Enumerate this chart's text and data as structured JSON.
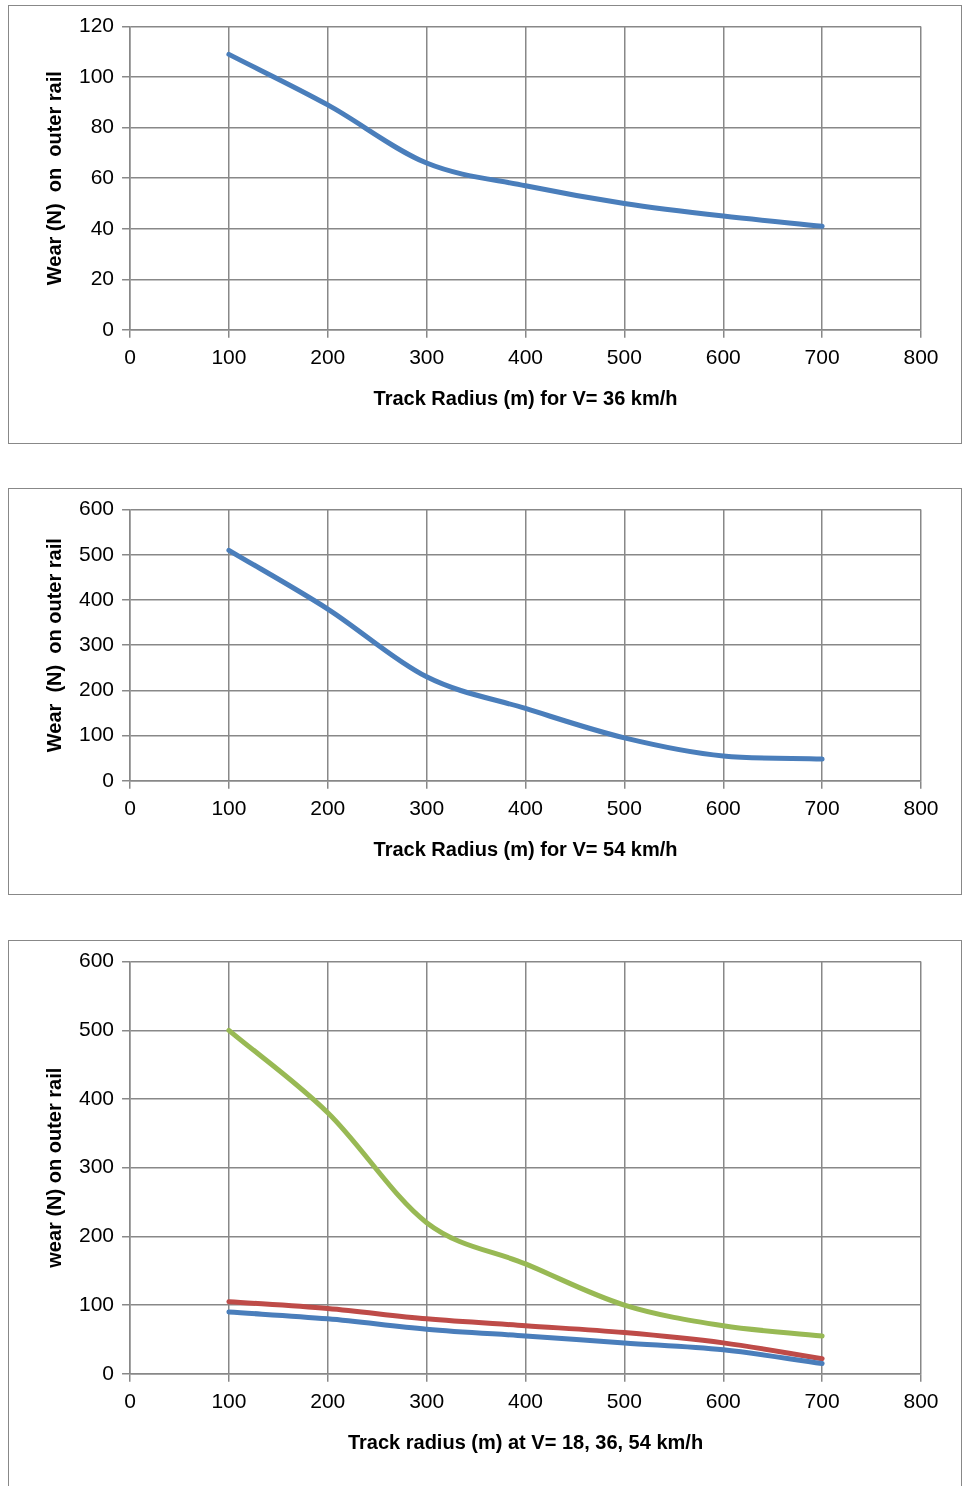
{
  "chart_data": [
    {
      "type": "line",
      "x": [
        100,
        200,
        300,
        400,
        500,
        600,
        700
      ],
      "xlabel": "Track Radius (m) for V= 36 km/h",
      "ylabel": "Wear (N)  on  outer rail",
      "xlim": [
        0,
        800
      ],
      "xticks": [
        0,
        100,
        200,
        300,
        400,
        500,
        600,
        700,
        800
      ],
      "ylim": [
        0,
        120
      ],
      "yticks": [
        0,
        20,
        40,
        60,
        80,
        100,
        120
      ],
      "grid": true,
      "legend": false,
      "marker": "none",
      "series": [
        {
          "color": "#4a7ebb",
          "values": [
            109,
            89,
            66,
            57,
            50,
            45,
            41
          ]
        }
      ]
    },
    {
      "type": "line",
      "x": [
        100,
        200,
        300,
        400,
        500,
        600,
        700
      ],
      "xlabel": "Track Radius (m) for V= 54 km/h",
      "ylabel": "Wear  (N)  on outer rail",
      "xlim": [
        0,
        800
      ],
      "xticks": [
        0,
        100,
        200,
        300,
        400,
        500,
        600,
        700,
        800
      ],
      "ylim": [
        0,
        600
      ],
      "yticks": [
        0,
        100,
        200,
        300,
        400,
        500,
        600
      ],
      "grid": true,
      "legend": false,
      "marker": "none",
      "series": [
        {
          "color": "#4a7ebb",
          "values": [
            510,
            380,
            230,
            160,
            95,
            55,
            48
          ]
        }
      ]
    },
    {
      "type": "line",
      "x": [
        100,
        200,
        300,
        400,
        500,
        600,
        700
      ],
      "xlabel": "Track radius (m) at V= 18, 36, 54 km/h",
      "ylabel": "wear (N) on outer rail",
      "xlim": [
        0,
        800
      ],
      "xticks": [
        0,
        100,
        200,
        300,
        400,
        500,
        600,
        700,
        800
      ],
      "ylim": [
        0,
        600
      ],
      "yticks": [
        0,
        100,
        200,
        300,
        400,
        500,
        600
      ],
      "grid": true,
      "legend": false,
      "marker": "none",
      "series": [
        {
          "color": "#4a7ebb",
          "values": [
            90,
            80,
            65,
            55,
            45,
            35,
            15
          ]
        },
        {
          "color": "#be4b48",
          "values": [
            105,
            95,
            80,
            70,
            60,
            45,
            22
          ]
        },
        {
          "color": "#98b954",
          "values": [
            500,
            380,
            220,
            160,
            100,
            70,
            55
          ]
        }
      ]
    }
  ]
}
